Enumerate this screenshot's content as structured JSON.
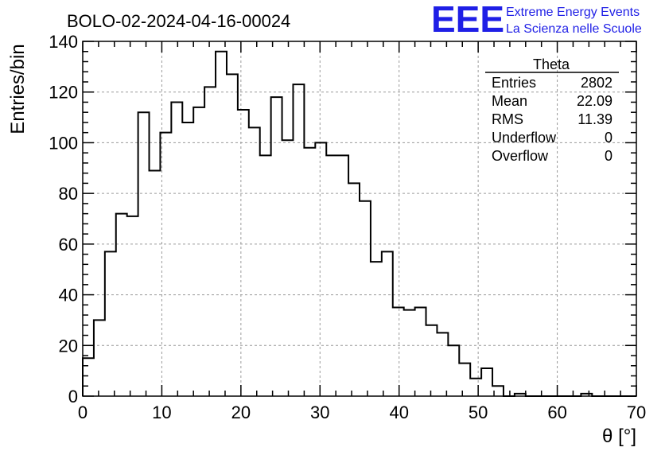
{
  "header": {
    "title": "BOLO-02-2024-04-16-00024",
    "logo_mark": "EEE",
    "logo_line1": "Extreme Energy Events",
    "logo_line2": "La Scienza nelle Scuole",
    "logo_color": "#1f1fe6"
  },
  "stats": {
    "name": "Theta",
    "rows": [
      {
        "label": "Entries",
        "value": "2802"
      },
      {
        "label": "Mean",
        "value": "22.09"
      },
      {
        "label": "RMS",
        "value": "11.39"
      },
      {
        "label": "Underflow",
        "value": "0"
      },
      {
        "label": "Overflow",
        "value": "0"
      }
    ]
  },
  "chart_data": {
    "type": "bar",
    "histogram": true,
    "xlabel": "θ [°]",
    "ylabel": "Entries/bin",
    "xlim": [
      0,
      70
    ],
    "ylim": [
      0,
      140
    ],
    "x_ticks": [
      0,
      10,
      20,
      30,
      40,
      50,
      60,
      70
    ],
    "y_ticks": [
      0,
      20,
      40,
      60,
      80,
      100,
      120,
      140
    ],
    "grid": true,
    "bin_width": 1.4,
    "values": [
      15,
      30,
      57,
      72,
      71,
      112,
      89,
      104,
      116,
      108,
      114,
      122,
      136,
      127,
      113,
      106,
      95,
      118,
      101,
      123,
      98,
      100,
      95,
      95,
      84,
      77,
      53,
      57,
      35,
      34,
      35,
      28,
      25,
      20,
      13,
      7,
      11,
      4,
      0,
      1,
      0,
      0,
      0,
      0,
      0,
      1,
      0,
      0,
      0,
      0
    ]
  }
}
